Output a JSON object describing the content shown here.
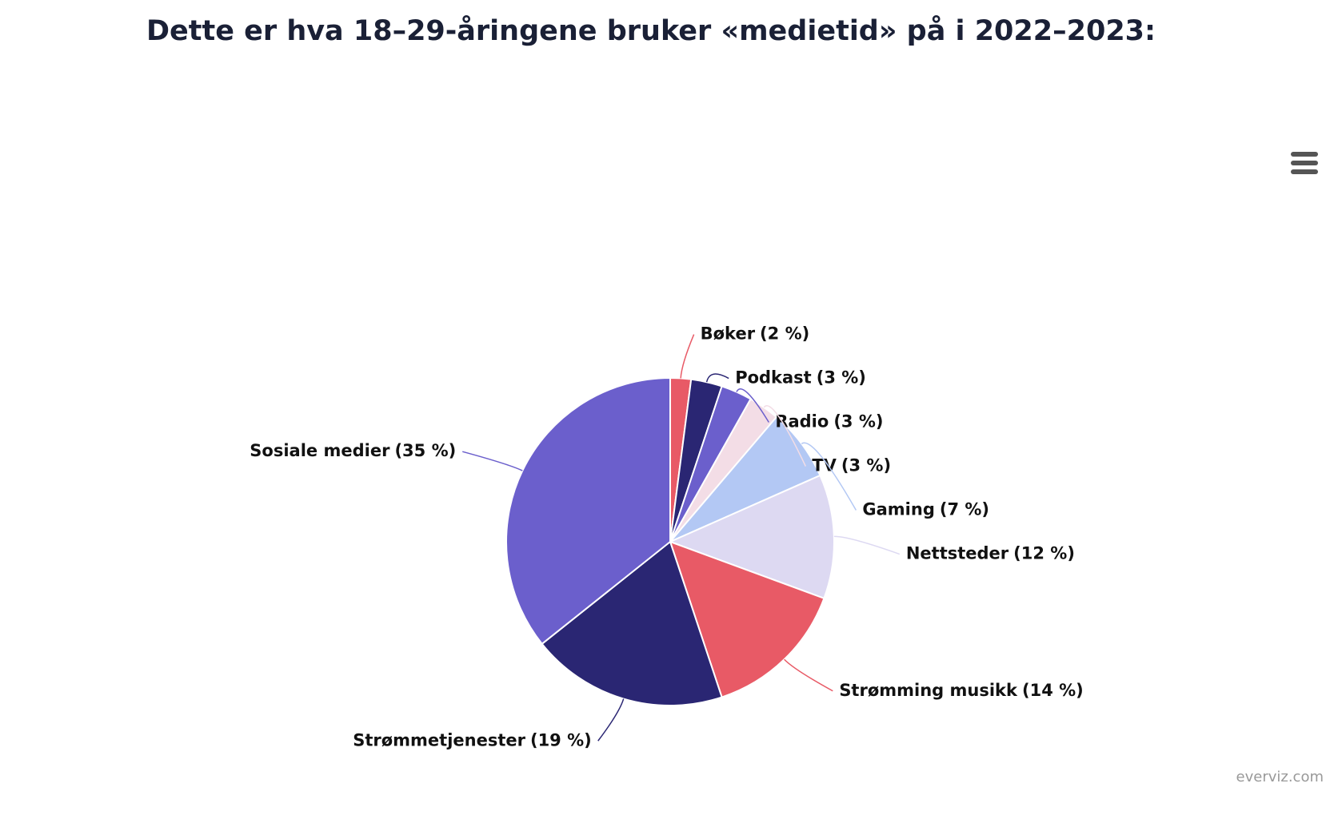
{
  "chart_data": {
    "type": "pie",
    "title": "Dette er hva 18–29-åringene bruker «medietid» på i 2022–2023:",
    "categories": [
      "Bøker",
      "Podkast",
      "Radio",
      "TV",
      "Gaming",
      "Nettsteder",
      "Strømming musikk",
      "Strømmetjenester",
      "Sosiale medier"
    ],
    "values": [
      2,
      3,
      3,
      3,
      7,
      12,
      14,
      19,
      35
    ],
    "value_labels": [
      "(2 %)",
      "(3 %)",
      "(3 %)",
      "(3 %)",
      "(7 %)",
      "(12 %)",
      "(14 %)",
      "(19 %)",
      "(35 %)"
    ],
    "colors": [
      "#e85a66",
      "#2a2673",
      "#6b5fcc",
      "#f3dde6",
      "#b3c8f4",
      "#ddd9f2",
      "#e85a66",
      "#2a2673",
      "#6b5fcc"
    ],
    "credits": "everviz.com"
  }
}
